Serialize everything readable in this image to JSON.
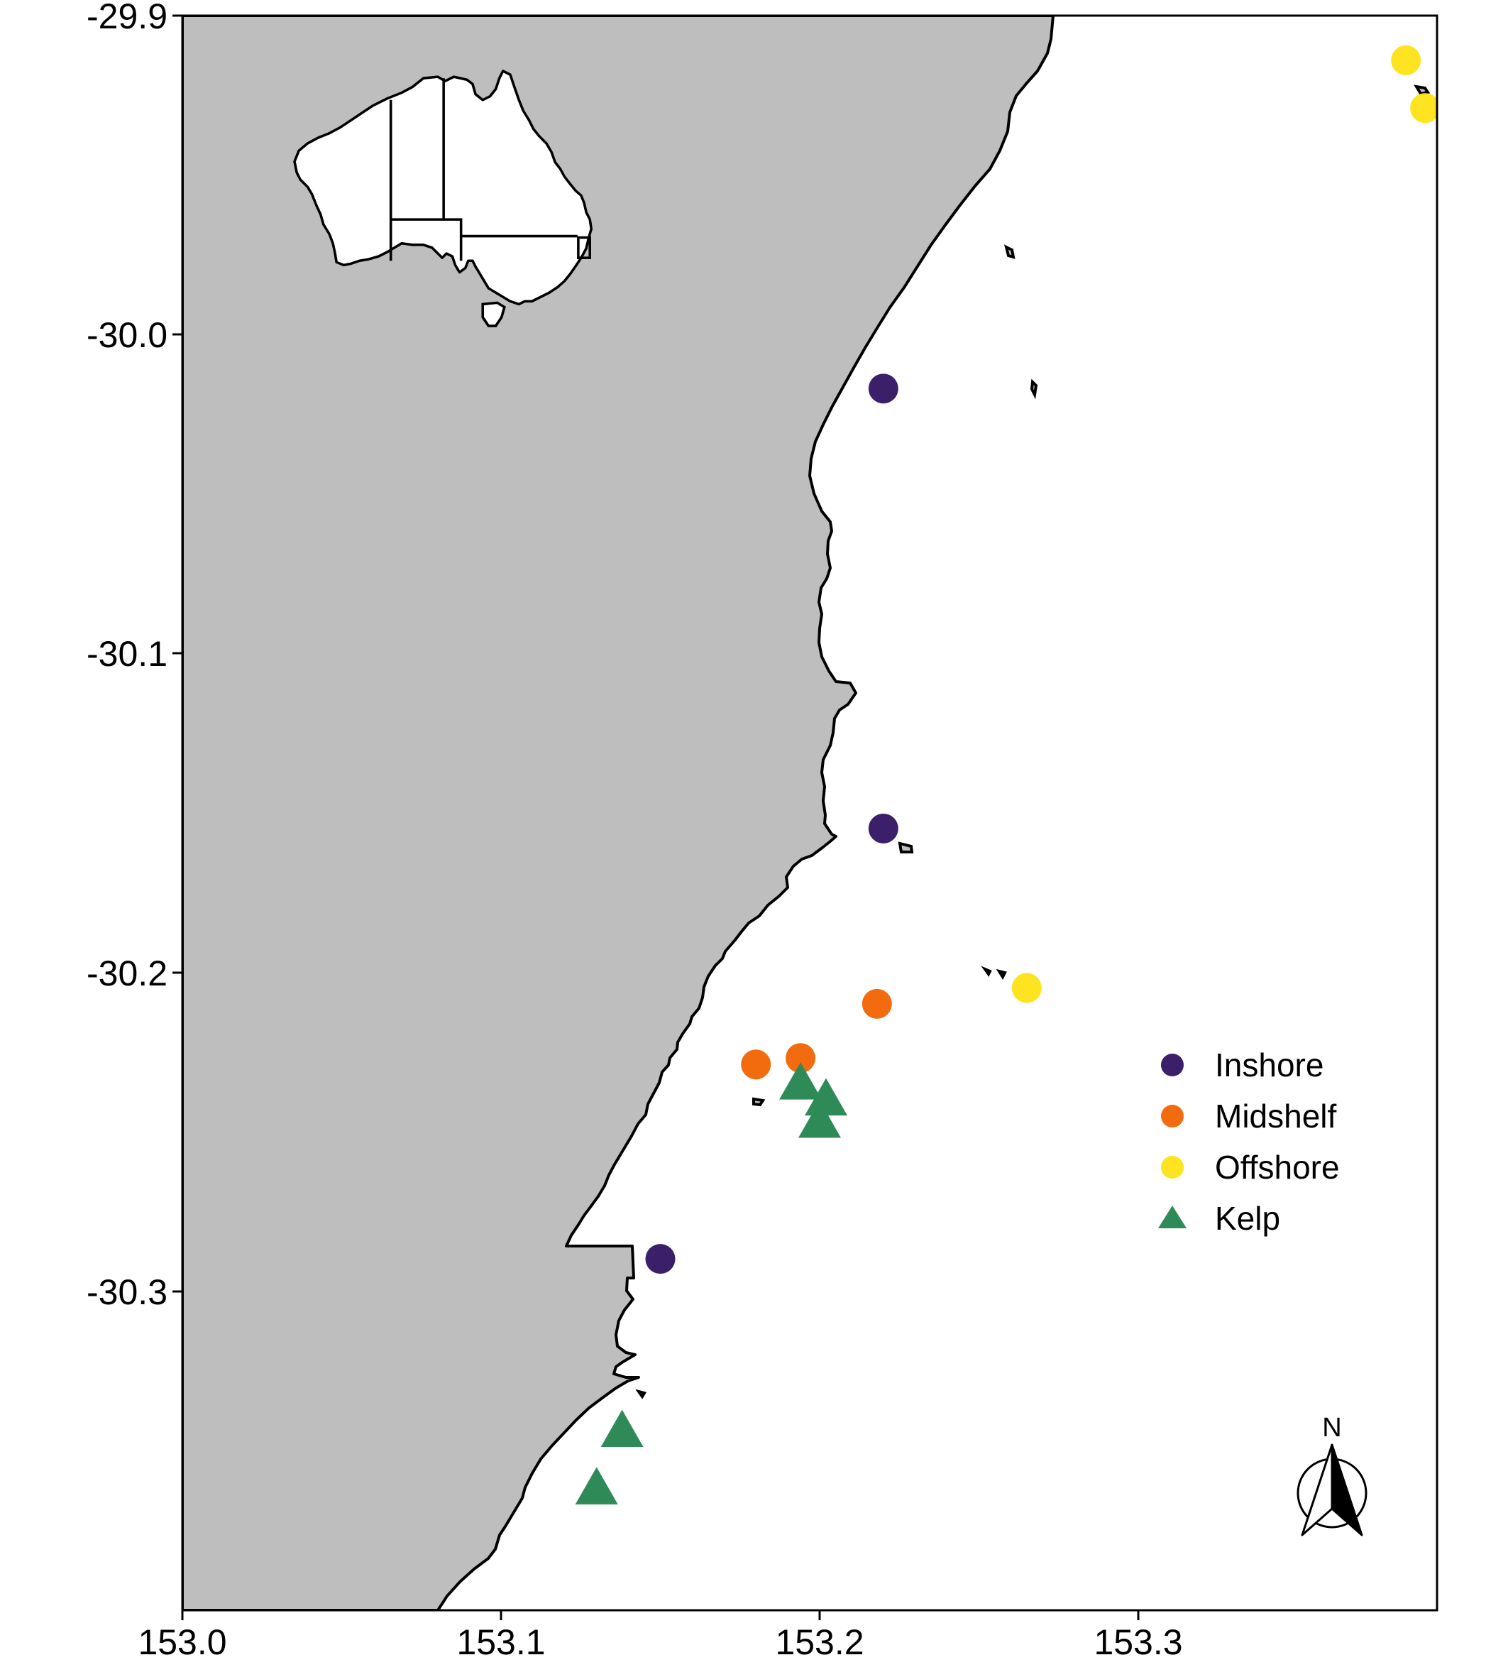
{
  "map": {
    "x_ticks": [
      "153.0",
      "153.1",
      "153.2",
      "153.3"
    ],
    "y_ticks": [
      "-29.9",
      "-30.0",
      "-30.1",
      "-30.2",
      "-30.3"
    ],
    "xlim": [
      153.0,
      153.395
    ],
    "ylim": [
      -30.4,
      -29.9
    ],
    "land_color": "#bebebe",
    "sea_color": "#ffffff",
    "north_label": "N"
  },
  "legend": {
    "items": [
      {
        "label": "Inshore",
        "color": "#3b1f6b",
        "shape": "circle"
      },
      {
        "label": "Midshelf",
        "color": "#f26b0f",
        "shape": "circle"
      },
      {
        "label": "Offshore",
        "color": "#fde320",
        "shape": "circle"
      },
      {
        "label": "Kelp",
        "color": "#2e8b57",
        "shape": "triangle"
      }
    ]
  },
  "chart_data": {
    "type": "scatter",
    "xlim": [
      153.0,
      153.395
    ],
    "ylim": [
      -30.4,
      -29.9
    ],
    "grid": false,
    "legend_position": "right",
    "series": [
      {
        "name": "Inshore",
        "color": "#3b1f6b",
        "shape": "circle",
        "points": [
          [
            153.22,
            -30.017
          ],
          [
            153.22,
            -30.155
          ],
          [
            153.15,
            -30.29
          ]
        ]
      },
      {
        "name": "Midshelf",
        "color": "#f26b0f",
        "shape": "circle",
        "points": [
          [
            153.218,
            -30.21
          ],
          [
            153.18,
            -30.229
          ],
          [
            153.194,
            -30.227
          ]
        ]
      },
      {
        "name": "Offshore",
        "color": "#fde320",
        "shape": "circle",
        "points": [
          [
            153.384,
            -29.914
          ],
          [
            153.39,
            -29.929
          ],
          [
            153.265,
            -30.205
          ]
        ]
      },
      {
        "name": "Kelp",
        "color": "#2e8b57",
        "shape": "triangle",
        "points": [
          [
            153.194,
            -30.235
          ],
          [
            153.202,
            -30.24
          ],
          [
            153.2,
            -30.247
          ],
          [
            153.138,
            -30.344
          ],
          [
            153.13,
            -30.362
          ]
        ]
      }
    ]
  }
}
